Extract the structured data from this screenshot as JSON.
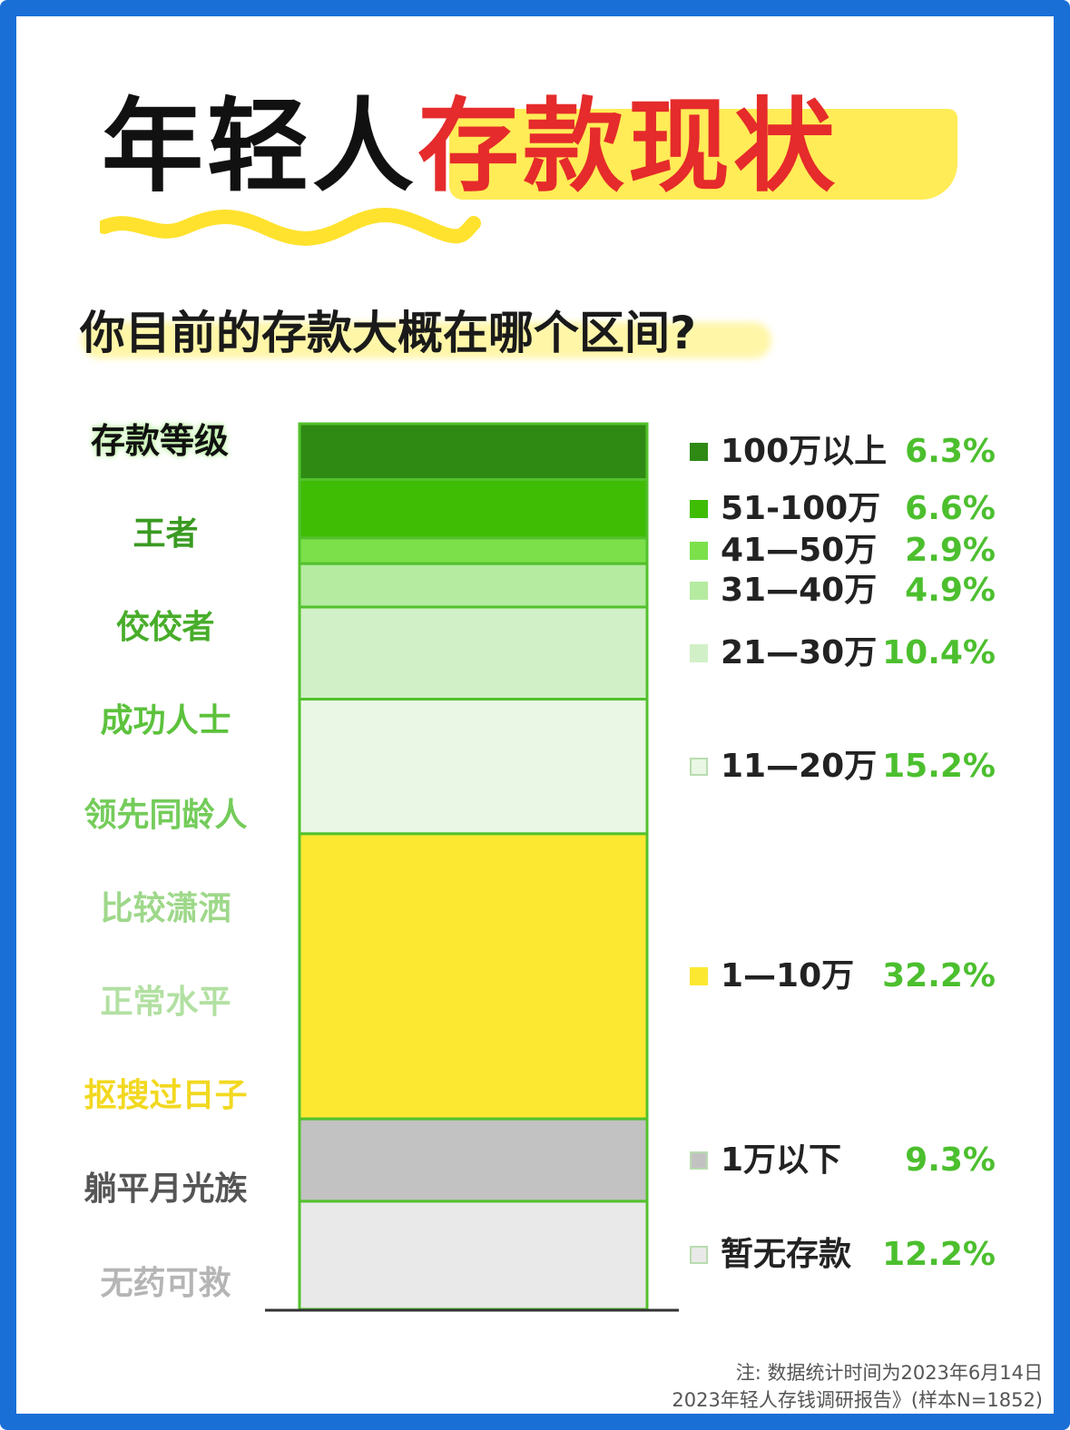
{
  "title_black": "年轻人",
  "title_red": "存款现状",
  "subtitle": "你目前的存款大概在哪个区间?",
  "rank_header": "存款等级",
  "ranks": [
    {
      "label": "王者",
      "color": "#3a9a22"
    },
    {
      "label": "佼佼者",
      "color": "#48ad2a"
    },
    {
      "label": "成功人士",
      "color": "#5cc23c"
    },
    {
      "label": "领先同龄人",
      "color": "#74cc5a"
    },
    {
      "label": "比较潇洒",
      "color": "#9ed88a"
    },
    {
      "label": "正常水平",
      "color": "#b2e0a2"
    },
    {
      "label": "抠搜过日子",
      "color": "#f2d820"
    },
    {
      "label": "躺平月光族",
      "color": "#555555"
    },
    {
      "label": "无药可救",
      "color": "#b5b5b5"
    }
  ],
  "chart_data": {
    "type": "stacked_bar",
    "unit": "%",
    "categories": [
      "100万以上",
      "51-100万",
      "41—50万",
      "31—40万",
      "21—30万",
      "11—20万",
      "1—10万",
      "1万以下",
      "暂无存款"
    ],
    "values": [
      6.3,
      6.6,
      2.9,
      4.9,
      10.4,
      15.2,
      32.2,
      9.3,
      12.2
    ],
    "value_labels": [
      "6.3%",
      "6.6%",
      "2.9%",
      "4.9%",
      "10.4%",
      "15.2%",
      "32.2%",
      "9.3%",
      "12.2%"
    ],
    "colors": [
      "#2f8a14",
      "#3fbc04",
      "#7be04a",
      "#b5eba0",
      "#d2f0c8",
      "#e9f7e4",
      "#fde831",
      "#c2c2c2",
      "#e9e9e9"
    ],
    "border_color": "#52c12d"
  },
  "note_line1": "注: 数据统计时间为2023年6月14日",
  "note_line2": "2023年轻人存钱调研报告》(样本N=1852)"
}
